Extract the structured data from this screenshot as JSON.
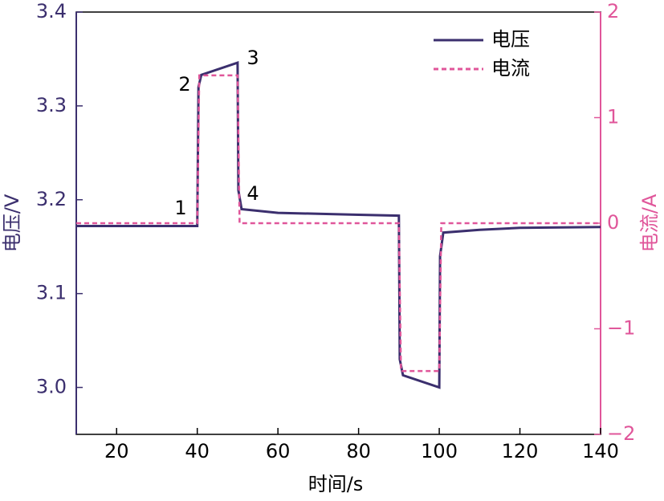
{
  "chart_data": {
    "type": "line",
    "xlabel": "时间/s",
    "ylabel": "电压/V",
    "y2label": "电流/A",
    "xlim": [
      10,
      140
    ],
    "xticks": [
      20,
      40,
      60,
      80,
      100,
      120,
      140
    ],
    "ylim": [
      2.95,
      3.4
    ],
    "yticks": [
      {
        "value": 3,
        "label": "3.0"
      },
      3.1,
      3.2,
      3.3,
      3.4
    ],
    "y2lim": [
      -2,
      2
    ],
    "y2ticks": [
      {
        "value": -2,
        "label": "−2"
      },
      {
        "value": -1,
        "label": "−1"
      },
      0,
      1,
      2
    ],
    "legend": "upper right",
    "series": [
      {
        "name": "电压",
        "color": "#3b2f6e",
        "style": "solid",
        "x": [
          10,
          40,
          40.3,
          41,
          50,
          50.2,
          51,
          60,
          80,
          90,
          90.2,
          91,
          100,
          100.2,
          101,
          110,
          120,
          140
        ],
        "values": [
          3.172,
          3.172,
          3.32,
          3.333,
          3.346,
          3.21,
          3.19,
          3.186,
          3.184,
          3.183,
          3.03,
          3.013,
          3.0,
          3.14,
          3.165,
          3.168,
          3.17,
          3.171
        ]
      },
      {
        "name": "电流",
        "color": "#e0569a",
        "style": "dashed",
        "axis": "y2",
        "x": [
          10,
          40,
          40.5,
          50,
          50.5,
          90,
          90.5,
          100,
          100.5,
          140
        ],
        "values": [
          0,
          0,
          1.4,
          1.4,
          0,
          0,
          -1.4,
          -1.4,
          0,
          0
        ]
      }
    ],
    "annotations": [
      "1",
      "2",
      "3",
      "4"
    ]
  }
}
